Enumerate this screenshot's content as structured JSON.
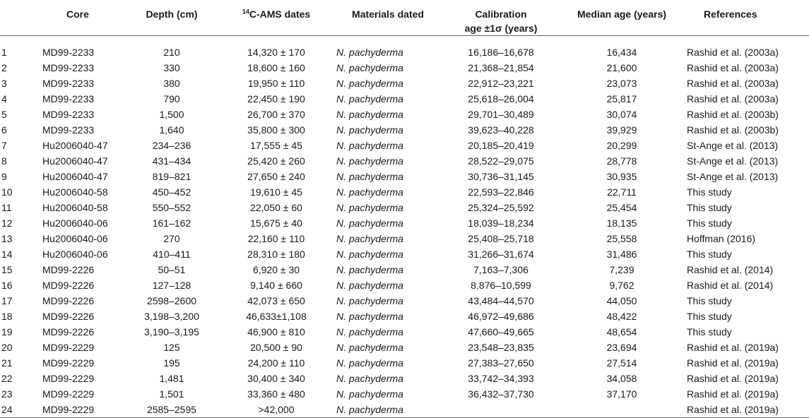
{
  "headers": {
    "no": "",
    "core": "Core",
    "depth": "Depth (cm)",
    "dates_sup": "14",
    "dates_rest": "C-AMS dates",
    "materials": "Materials dated",
    "calibration_line1": "Calibration",
    "calibration_line2": "age ±1σ (years)",
    "median": "Median age (years)",
    "references": "References"
  },
  "rows": [
    {
      "no": "1",
      "core": "MD99-2233",
      "depth": "210",
      "dates": "14,320 ± 170",
      "material": "N. pachyderma",
      "calibration": "16,186–16,678",
      "median": "16,434",
      "reference": "Rashid et al. (2003a)"
    },
    {
      "no": "2",
      "core": "MD99-2233",
      "depth": "330",
      "dates": "18,600 ± 160",
      "material": "N. pachyderma",
      "calibration": "21,368–21,854",
      "median": "21,600",
      "reference": "Rashid et al. (2003a)"
    },
    {
      "no": "3",
      "core": "MD99-2233",
      "depth": "380",
      "dates": "19,950 ± 110",
      "material": "N. pachyderma",
      "calibration": "22,912–23,221",
      "median": "23,073",
      "reference": "Rashid et al. (2003a)"
    },
    {
      "no": "4",
      "core": "MD99-2233",
      "depth": "790",
      "dates": "22,450 ± 190",
      "material": "N. pachyderma",
      "calibration": "25,618–26,004",
      "median": "25,817",
      "reference": "Rashid et al. (2003a)"
    },
    {
      "no": "5",
      "core": "MD99-2233",
      "depth": "1,500",
      "dates": "26,700 ± 370",
      "material": "N. pachyderma",
      "calibration": "29,701–30,489",
      "median": "30,074",
      "reference": "Rashid et al. (2003b)"
    },
    {
      "no": "6",
      "core": "MD99-2233",
      "depth": "1,640",
      "dates": "35,800 ± 300",
      "material": "N. pachyderma",
      "calibration": "39,623–40,228",
      "median": "39,929",
      "reference": "Rashid et al. (2003b)"
    },
    {
      "no": "7",
      "core": "Hu2006040-47",
      "depth": "234–236",
      "dates": "17,555 ± 45",
      "material": "N. pachyderma",
      "calibration": "20,185–20,419",
      "median": "20,299",
      "reference": "St-Ange et al. (2013)"
    },
    {
      "no": "8",
      "core": "Hu2006040-47",
      "depth": "431–434",
      "dates": "25,420 ± 260",
      "material": "N. pachyderma",
      "calibration": "28,522–29,075",
      "median": "28,778",
      "reference": "St-Ange et al. (2013)"
    },
    {
      "no": "9",
      "core": "Hu2006040-47",
      "depth": "819–821",
      "dates": "27,650 ± 240",
      "material": "N. pachyderma",
      "calibration": "30,736–31,145",
      "median": "30,935",
      "reference": "St-Ange et al. (2013)"
    },
    {
      "no": "10",
      "core": "Hu2006040-58",
      "depth": "450–452",
      "dates": "19,610 ± 45",
      "material": "N. pachyderma",
      "calibration": "22,593–22,846",
      "median": "22,711",
      "reference": "This study"
    },
    {
      "no": "11",
      "core": "Hu2006040-58",
      "depth": "550–552",
      "dates": "22,050 ± 60",
      "material": "N. pachyderma",
      "calibration": "25,324–25,592",
      "median": "25,454",
      "reference": "This study"
    },
    {
      "no": "12",
      "core": "Hu2006040-06",
      "depth": "161–162",
      "dates": "15,675 ± 40",
      "material": "N. pachyderma",
      "calibration": "18,039–18,234",
      "median": "18,135",
      "reference": "This study"
    },
    {
      "no": "13",
      "core": "Hu2006040-06",
      "depth": "270",
      "dates": "22,160 ± 110",
      "material": "N. pachyderma",
      "calibration": "25,408–25,718",
      "median": "25,558",
      "reference": "Hoffman (2016)"
    },
    {
      "no": "14",
      "core": "Hu2006040-06",
      "depth": "410–411",
      "dates": "28,310 ± 180",
      "material": "N. pachyderma",
      "calibration": "31,266–31,674",
      "median": "31,486",
      "reference": "This study"
    },
    {
      "no": "15",
      "core": "MD99-2226",
      "depth": "50–51",
      "dates": "6,920 ± 30",
      "material": "N. pachyderma",
      "calibration": "7,163–7,306",
      "median": "7,239",
      "reference": "Rashid et al. (2014)"
    },
    {
      "no": "16",
      "core": "MD99-2226",
      "depth": "127–128",
      "dates": "9,140 ± 660",
      "material": "N. pachyderma",
      "calibration": "8,876–10,599",
      "median": "9,762",
      "reference": "Rashid et al. (2014)"
    },
    {
      "no": "17",
      "core": "MD99-2226",
      "depth": "2598–2600",
      "dates": "42,073 ± 650",
      "material": "N. pachyderma",
      "calibration": "43,484–44,570",
      "median": "44,050",
      "reference": "This study"
    },
    {
      "no": "18",
      "core": "MD99-2226",
      "depth": "3,198–3,200",
      "dates": "46,633±1,108",
      "material": "N. pachyderma",
      "calibration": "46,972–49,686",
      "median": "48,422",
      "reference": "This study"
    },
    {
      "no": "19",
      "core": "MD99-2226",
      "depth": "3,190–3,195",
      "dates": "46,900 ± 810",
      "material": "N. pachyderma",
      "calibration": "47,660–49,665",
      "median": "48,654",
      "reference": "This study"
    },
    {
      "no": "20",
      "core": "MD99-2229",
      "depth": "125",
      "dates": "20,500 ± 90",
      "material": "N. pachyderma",
      "calibration": "23,548–23,835",
      "median": "23,694",
      "reference": "Rashid et al. (2019a)"
    },
    {
      "no": "21",
      "core": "MD99-2229",
      "depth": "195",
      "dates": "24,200 ± 110",
      "material": "N. pachyderma",
      "calibration": "27,383–27,650",
      "median": "27,514",
      "reference": "Rashid et al. (2019a)"
    },
    {
      "no": "22",
      "core": "MD99-2229",
      "depth": "1,481",
      "dates": "30,400 ± 340",
      "material": "N. pachyderma",
      "calibration": "33,742–34,393",
      "median": "34,058",
      "reference": "Rashid et al. (2019a)"
    },
    {
      "no": "23",
      "core": "MD99-2229",
      "depth": "1,501",
      "dates": "33,360 ± 480",
      "material": "N. pachyderma",
      "calibration": "36,432–37,730",
      "median": "37,170",
      "reference": "Rashid et al. (2019a)"
    },
    {
      "no": "24",
      "core": "MD99-2229",
      "depth": "2585–2595",
      "dates": ">42,000",
      "material": "N. pachyderma",
      "calibration": "",
      "median": "",
      "reference": "Rashid et al. (2019a)"
    }
  ]
}
